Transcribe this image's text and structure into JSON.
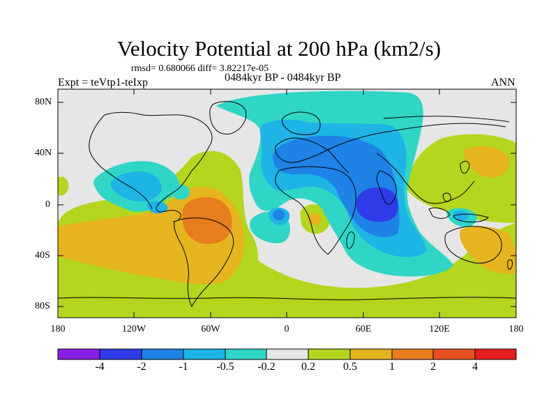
{
  "title": "Velocity Potential at 200 hPa (km2/s)",
  "stats": "rmsd= 0.680066 diff= 3.82217e-05",
  "left_string": "Expt = teVtp1-teIxp",
  "center_string": "0484kyr BP - 0484kyr BP",
  "right_string": "ANN",
  "lat_ticks": [
    "80N",
    "40N",
    "0",
    "40S",
    "80S"
  ],
  "lon_ticks": [
    "180",
    "120W",
    "60W",
    "0",
    "60E",
    "120E",
    "180"
  ],
  "colorbar": {
    "labels": [
      "-4",
      "-2",
      "-1",
      "-0.5",
      "-0.2",
      "0.2",
      "0.5",
      "1",
      "2",
      "4"
    ],
    "colors": [
      "#8b1ee6",
      "#2d3ce6",
      "#1e82e6",
      "#1eb4e6",
      "#2fd6c6",
      "#e6e6e6",
      "#b4d61e",
      "#e6b41e",
      "#e67d1e",
      "#e6501e",
      "#e61e1e"
    ]
  },
  "map_colors": {
    "neg4": "#2d3ce6",
    "neg2": "#1e82e6",
    "neg1": "#1eb4e6",
    "neg05": "#2fd6c6",
    "zero": "#e6e6e6",
    "pos02": "#b4d61e",
    "pos05": "#e6b41e",
    "pos1": "#e67d1e"
  }
}
